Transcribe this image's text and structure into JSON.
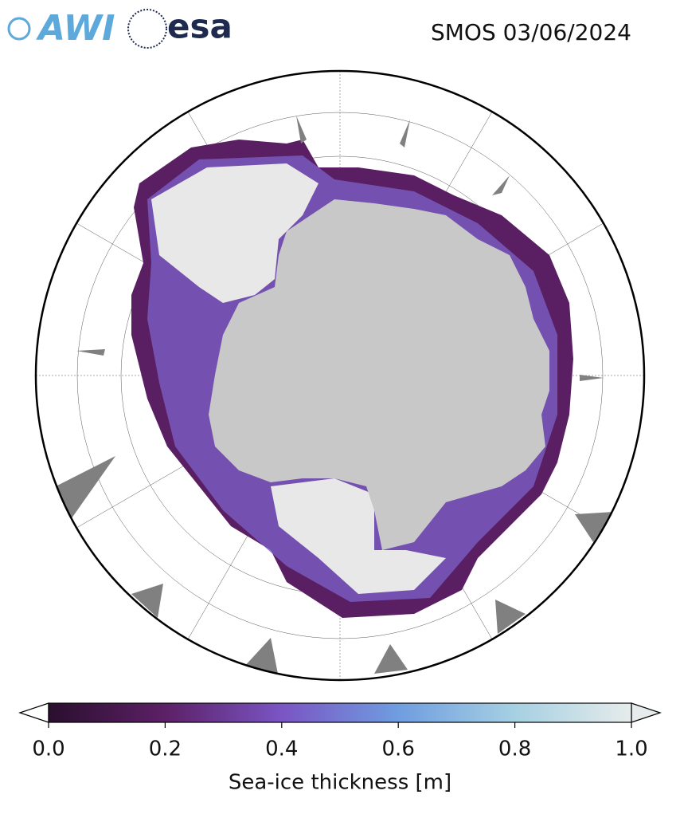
{
  "logos": [
    "AWI",
    "esa"
  ],
  "title": "SMOS 03/06/2024",
  "colorbar": {
    "label": "Sea-ice thickness [m]",
    "lim": [
      0,
      1
    ],
    "ticks": [
      {
        "value": 0,
        "label": "0.0"
      },
      {
        "value": 0.2,
        "label": "0.2"
      },
      {
        "value": 0.4,
        "label": "0.4"
      },
      {
        "value": 0.6,
        "label": "0.6"
      },
      {
        "value": 0.8,
        "label": "0.8"
      },
      {
        "value": 1,
        "label": "1.0"
      }
    ],
    "colors": [
      "#2a0f2e",
      "#5c2066",
      "#7a55c4",
      "#6f9de0",
      "#a6d0e2",
      "#e6eceb"
    ]
  }
}
